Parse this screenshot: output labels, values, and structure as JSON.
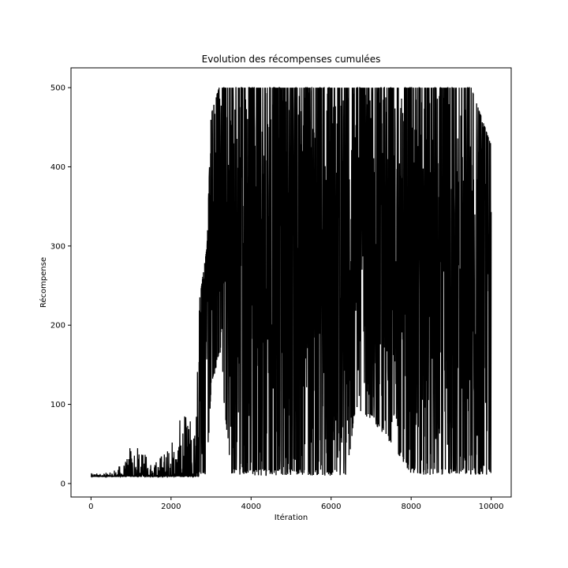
{
  "chart_data": {
    "type": "line",
    "title": "Evolution des récompenses cumulées",
    "xlabel": "Itération",
    "ylabel": "Récompense",
    "xlim": [
      -500,
      10500
    ],
    "ylim": [
      -17,
      525
    ],
    "x_ticks": [
      0,
      2000,
      4000,
      6000,
      8000,
      10000
    ],
    "y_ticks": [
      0,
      100,
      200,
      300,
      400,
      500
    ],
    "grid": false,
    "line_color": "#000000",
    "series": [
      {
        "x_range": [
          0,
          10000
        ],
        "envelope": [
          {
            "x": 0,
            "low": 9,
            "high": 13
          },
          {
            "x": 500,
            "low": 9,
            "high": 14
          },
          {
            "x": 900,
            "low": 9,
            "high": 32
          },
          {
            "x": 1000,
            "low": 9,
            "high": 67
          },
          {
            "x": 1200,
            "low": 9,
            "high": 42
          },
          {
            "x": 1600,
            "low": 9,
            "high": 30
          },
          {
            "x": 2000,
            "low": 9,
            "high": 55
          },
          {
            "x": 2300,
            "low": 9,
            "high": 90
          },
          {
            "x": 2600,
            "low": 9,
            "high": 85
          },
          {
            "x": 2700,
            "low": 9,
            "high": 228
          },
          {
            "x": 2900,
            "low": 12,
            "high": 300
          },
          {
            "x": 3000,
            "low": 120,
            "high": 466
          },
          {
            "x": 3200,
            "low": 160,
            "high": 500
          },
          {
            "x": 3500,
            "low": 12,
            "high": 500
          },
          {
            "x": 4000,
            "low": 9,
            "high": 500
          },
          {
            "x": 4500,
            "low": 10,
            "high": 500
          },
          {
            "x": 5000,
            "low": 10,
            "high": 500
          },
          {
            "x": 6000,
            "low": 10,
            "high": 500
          },
          {
            "x": 6400,
            "low": 10,
            "high": 500
          },
          {
            "x": 6600,
            "low": 90,
            "high": 500
          },
          {
            "x": 7000,
            "low": 80,
            "high": 500
          },
          {
            "x": 7500,
            "low": 50,
            "high": 500
          },
          {
            "x": 8000,
            "low": 11,
            "high": 500
          },
          {
            "x": 8500,
            "low": 11,
            "high": 500
          },
          {
            "x": 9000,
            "low": 11,
            "high": 500
          },
          {
            "x": 9500,
            "low": 11,
            "high": 500
          },
          {
            "x": 10000,
            "low": 11,
            "high": 427
          }
        ]
      }
    ]
  }
}
